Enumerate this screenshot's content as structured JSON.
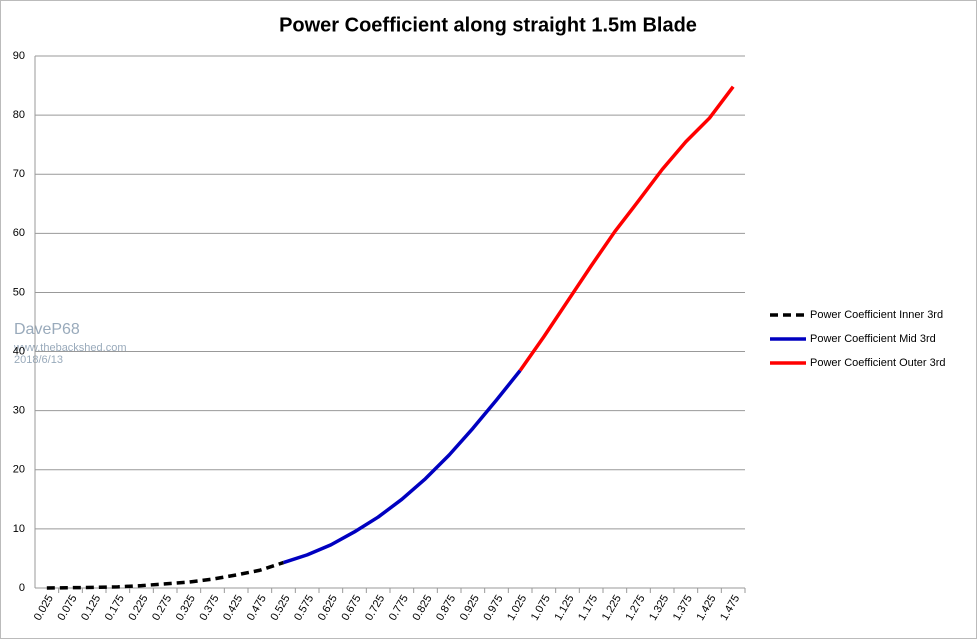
{
  "chart_data": {
    "type": "line",
    "title": "Power Coefficient along straight 1.5m Blade",
    "watermark": {
      "name": "DaveP68",
      "site": "www.thebackshed.com",
      "date": "2018/6/13"
    },
    "categories": [
      "0.025",
      "0.075",
      "0.125",
      "0.175",
      "0.225",
      "0.275",
      "0.325",
      "0.375",
      "0.425",
      "0.475",
      "0.525",
      "0.575",
      "0.625",
      "0.675",
      "0.725",
      "0.775",
      "0.825",
      "0.875",
      "0.925",
      "0.975",
      "1.025",
      "1.075",
      "1.125",
      "1.175",
      "1.225",
      "1.275",
      "1.325",
      "1.375",
      "1.425",
      "1.475"
    ],
    "series": [
      {
        "name": "Power Coefficient Inner 3rd",
        "color": "#000000",
        "dashed": true,
        "values": [
          0,
          0.05,
          0.1,
          0.2,
          0.4,
          0.7,
          1.0,
          1.5,
          2.2,
          3.0,
          4.3,
          null,
          null,
          null,
          null,
          null,
          null,
          null,
          null,
          null,
          null,
          null,
          null,
          null,
          null,
          null,
          null,
          null,
          null,
          null
        ]
      },
      {
        "name": "Power Coefficient Mid 3rd",
        "color": "#0000c0",
        "dashed": false,
        "values": [
          null,
          null,
          null,
          null,
          null,
          null,
          null,
          null,
          null,
          null,
          4.3,
          5.6,
          7.3,
          9.5,
          12,
          15,
          18.5,
          22.5,
          27,
          31.8,
          36.8,
          null,
          null,
          null,
          null,
          null,
          null,
          null,
          null,
          null
        ]
      },
      {
        "name": "Power Coefficient Outer 3rd",
        "color": "#ff0000",
        "dashed": false,
        "values": [
          null,
          null,
          null,
          null,
          null,
          null,
          null,
          null,
          null,
          null,
          null,
          null,
          null,
          null,
          null,
          null,
          null,
          null,
          null,
          null,
          36.8,
          42.5,
          48.5,
          54.5,
          60.3,
          65.5,
          70.8,
          75.5,
          79.5,
          84.8
        ]
      }
    ],
    "ylim": [
      0,
      90
    ],
    "yticks": [
      0,
      10,
      20,
      30,
      40,
      50,
      60,
      70,
      80,
      90
    ],
    "grid": true,
    "legend": "right"
  }
}
